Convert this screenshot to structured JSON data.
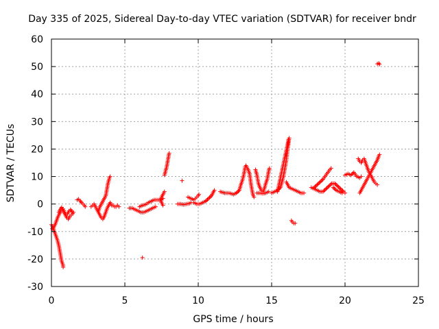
{
  "chart_data": {
    "type": "scatter",
    "title": "Day 335 of 2025, Sidereal Day-to-day VTEC variation (SDTVAR) for receiver bndr",
    "xlabel": "GPS time / hours",
    "ylabel": "SDTVAR / TECUs",
    "xlim": [
      0,
      25
    ],
    "ylim": [
      -30,
      60
    ],
    "xticks": [
      0,
      5,
      10,
      15,
      20,
      25
    ],
    "yticks": [
      -30,
      -20,
      -10,
      0,
      10,
      20,
      30,
      40,
      50,
      60
    ],
    "grid": true,
    "marker": "+",
    "marker_color": "#ff0000",
    "segments": [
      [
        [
          0.0,
          -7.5
        ],
        [
          0.1,
          -8.5
        ],
        [
          0.2,
          -10.0
        ],
        [
          0.3,
          -11.5
        ],
        [
          0.4,
          -13.0
        ],
        [
          0.5,
          -15.0
        ],
        [
          0.55,
          -16.5
        ],
        [
          0.6,
          -18.0
        ],
        [
          0.65,
          -19.5
        ],
        [
          0.7,
          -21.0
        ],
        [
          0.78,
          -22.0
        ],
        [
          0.8,
          -23.0
        ]
      ],
      [
        [
          0.05,
          -9.0
        ],
        [
          0.15,
          -8.5
        ],
        [
          0.25,
          -7.5
        ],
        [
          0.35,
          -6.0
        ],
        [
          0.45,
          -4.5
        ],
        [
          0.55,
          -3.5
        ],
        [
          0.65,
          -2.5
        ],
        [
          0.75,
          -2.0
        ],
        [
          0.85,
          -3.0
        ],
        [
          0.95,
          -4.0
        ],
        [
          1.05,
          -5.0
        ],
        [
          1.15,
          -5.5
        ],
        [
          1.25,
          -4.5
        ],
        [
          1.35,
          -4.0
        ],
        [
          1.45,
          -3.5
        ],
        [
          1.5,
          -3.0
        ]
      ],
      [
        [
          0.5,
          -3.0
        ],
        [
          0.6,
          -2.0
        ],
        [
          0.7,
          -1.2
        ],
        [
          0.8,
          -1.8
        ],
        [
          0.9,
          -3.0
        ],
        [
          1.0,
          -4.0
        ],
        [
          1.1,
          -3.5
        ],
        [
          1.2,
          -2.5
        ],
        [
          1.3,
          -2.0
        ],
        [
          1.4,
          -2.8
        ]
      ],
      [
        [
          1.75,
          1.5
        ],
        [
          1.85,
          1.8
        ],
        [
          1.95,
          1.2
        ],
        [
          2.05,
          0.5
        ],
        [
          2.15,
          0.0
        ],
        [
          2.25,
          -0.5
        ],
        [
          2.3,
          -1.0
        ]
      ],
      [
        [
          2.7,
          -1.0
        ],
        [
          2.8,
          -0.5
        ],
        [
          2.9,
          0.0
        ],
        [
          3.0,
          -1.0
        ],
        [
          3.1,
          -2.0
        ],
        [
          3.2,
          -3.0
        ],
        [
          3.3,
          -4.0
        ],
        [
          3.4,
          -5.0
        ],
        [
          3.5,
          -5.5
        ],
        [
          3.6,
          -4.5
        ],
        [
          3.7,
          -3.0
        ],
        [
          3.8,
          -1.5
        ],
        [
          3.9,
          -0.5
        ],
        [
          4.0,
          0.5
        ],
        [
          4.1,
          -0.5
        ],
        [
          4.2,
          -0.5
        ],
        [
          4.3,
          -1.0
        ],
        [
          4.4,
          -1.0
        ],
        [
          4.5,
          -0.5
        ],
        [
          4.6,
          -1.0
        ]
      ],
      [
        [
          3.2,
          -2.5
        ],
        [
          3.3,
          -1.0
        ],
        [
          3.4,
          0.0
        ],
        [
          3.5,
          1.0
        ],
        [
          3.6,
          2.0
        ],
        [
          3.7,
          3.0
        ],
        [
          3.75,
          4.5
        ],
        [
          3.8,
          6.0
        ],
        [
          3.85,
          7.5
        ],
        [
          3.9,
          8.5
        ],
        [
          3.95,
          9.5
        ],
        [
          4.0,
          10.0
        ]
      ],
      [
        [
          5.3,
          -1.5
        ],
        [
          5.5,
          -1.5
        ],
        [
          5.7,
          -2.0
        ],
        [
          5.9,
          -2.5
        ],
        [
          6.1,
          -3.0
        ],
        [
          6.3,
          -3.0
        ],
        [
          6.5,
          -2.5
        ],
        [
          6.7,
          -2.0
        ],
        [
          6.9,
          -1.5
        ],
        [
          7.1,
          -1.0
        ]
      ],
      [
        [
          6.2,
          -19.5
        ]
      ],
      [
        [
          6.0,
          -1.0
        ],
        [
          6.2,
          -0.5
        ],
        [
          6.4,
          -0.2
        ],
        [
          6.6,
          0.5
        ],
        [
          6.8,
          1.0
        ],
        [
          7.0,
          1.5
        ],
        [
          7.2,
          1.5
        ],
        [
          7.4,
          1.5
        ],
        [
          7.6,
          2.0
        ]
      ],
      [
        [
          7.6,
          -0.5
        ],
        [
          7.5,
          0.5
        ],
        [
          7.45,
          1.5
        ],
        [
          7.5,
          2.5
        ],
        [
          7.55,
          3.0
        ],
        [
          7.6,
          3.5
        ],
        [
          7.65,
          4.0
        ],
        [
          7.7,
          4.5
        ]
      ],
      [
        [
          7.7,
          10.5
        ],
        [
          7.75,
          11.5
        ],
        [
          7.8,
          12.5
        ],
        [
          7.85,
          13.5
        ],
        [
          7.9,
          15.0
        ],
        [
          7.95,
          16.5
        ],
        [
          8.0,
          18.0
        ],
        [
          8.02,
          18.5
        ]
      ],
      [
        [
          8.9,
          8.5
        ]
      ],
      [
        [
          8.6,
          0.0
        ],
        [
          8.8,
          0.0
        ],
        [
          9.0,
          -0.2
        ],
        [
          9.2,
          0.0
        ],
        [
          9.4,
          0.2
        ],
        [
          9.5,
          0.5
        ]
      ],
      [
        [
          9.3,
          2.5
        ],
        [
          9.5,
          2.0
        ],
        [
          9.7,
          1.5
        ],
        [
          9.8,
          2.0
        ],
        [
          9.9,
          2.5
        ],
        [
          10.0,
          3.0
        ],
        [
          10.05,
          3.5
        ]
      ],
      [
        [
          9.7,
          0.5
        ],
        [
          9.9,
          0.0
        ],
        [
          10.1,
          0.0
        ],
        [
          10.3,
          0.5
        ],
        [
          10.5,
          1.0
        ],
        [
          10.7,
          2.0
        ],
        [
          10.9,
          3.0
        ],
        [
          11.0,
          4.0
        ],
        [
          11.1,
          5.0
        ]
      ],
      [
        [
          11.5,
          4.5
        ],
        [
          11.8,
          4.0
        ],
        [
          12.1,
          4.0
        ],
        [
          12.4,
          3.5
        ],
        [
          12.6,
          4.0
        ],
        [
          12.8,
          5.0
        ],
        [
          12.9,
          7.0
        ],
        [
          13.0,
          8.5
        ],
        [
          13.1,
          10.5
        ],
        [
          13.15,
          12.0
        ],
        [
          13.2,
          13.5
        ],
        [
          13.25,
          14.0
        ],
        [
          13.3,
          13.5
        ],
        [
          13.4,
          12.5
        ],
        [
          13.5,
          11.0
        ],
        [
          13.55,
          9.0
        ],
        [
          13.6,
          7.0
        ],
        [
          13.65,
          5.5
        ],
        [
          13.7,
          4.0
        ],
        [
          13.75,
          3.0
        ],
        [
          13.8,
          2.5
        ]
      ],
      [
        [
          13.9,
          12.5
        ],
        [
          13.95,
          11.5
        ],
        [
          14.0,
          10.5
        ],
        [
          14.05,
          9.0
        ],
        [
          14.1,
          7.5
        ],
        [
          14.2,
          6.0
        ],
        [
          14.3,
          5.0
        ],
        [
          14.4,
          4.5
        ],
        [
          14.5,
          5.5
        ],
        [
          14.6,
          7.5
        ],
        [
          14.7,
          9.0
        ],
        [
          14.75,
          10.5
        ],
        [
          14.8,
          12.0
        ],
        [
          14.85,
          13.0
        ]
      ],
      [
        [
          14.0,
          4.0
        ],
        [
          14.2,
          4.0
        ],
        [
          14.4,
          3.8
        ],
        [
          14.6,
          4.0
        ],
        [
          14.8,
          4.5
        ]
      ],
      [
        [
          15.0,
          4.0
        ],
        [
          15.2,
          4.5
        ],
        [
          15.4,
          5.0
        ],
        [
          15.6,
          6.0
        ],
        [
          15.8,
          10.0
        ],
        [
          15.9,
          13.0
        ],
        [
          16.0,
          16.0
        ],
        [
          16.1,
          20.0
        ],
        [
          16.2,
          24.0
        ]
      ],
      [
        [
          15.4,
          4.5
        ],
        [
          15.5,
          7.0
        ],
        [
          15.6,
          9.5
        ],
        [
          15.7,
          12.0
        ],
        [
          15.8,
          14.5
        ],
        [
          15.9,
          17.0
        ],
        [
          16.0,
          19.5
        ],
        [
          16.1,
          22.0
        ],
        [
          16.15,
          23.5
        ]
      ],
      [
        [
          16.0,
          8.0
        ],
        [
          16.1,
          7.0
        ],
        [
          16.2,
          6.0
        ],
        [
          16.4,
          5.5
        ],
        [
          16.6,
          5.0
        ],
        [
          16.8,
          4.5
        ],
        [
          17.0,
          4.0
        ],
        [
          17.2,
          4.0
        ]
      ],
      [
        [
          16.35,
          -6.0
        ],
        [
          16.4,
          -6.5
        ],
        [
          16.5,
          -7.0
        ],
        [
          16.6,
          -7.0
        ]
      ],
      [
        [
          17.7,
          6.0
        ],
        [
          17.9,
          5.5
        ],
        [
          18.1,
          5.0
        ],
        [
          18.3,
          4.5
        ],
        [
          18.5,
          4.5
        ],
        [
          18.7,
          5.5
        ],
        [
          18.9,
          6.5
        ],
        [
          19.1,
          7.5
        ],
        [
          19.3,
          7.5
        ],
        [
          19.5,
          6.5
        ],
        [
          19.7,
          5.5
        ],
        [
          19.9,
          4.5
        ],
        [
          20.0,
          4.0
        ]
      ],
      [
        [
          17.9,
          6.0
        ],
        [
          18.1,
          7.0
        ],
        [
          18.3,
          8.0
        ],
        [
          18.5,
          9.0
        ],
        [
          18.7,
          10.5
        ],
        [
          18.9,
          12.0
        ],
        [
          19.05,
          13.0
        ]
      ],
      [
        [
          19.2,
          6.0
        ],
        [
          19.4,
          5.0
        ],
        [
          19.6,
          4.5
        ],
        [
          19.8,
          4.0
        ]
      ],
      [
        [
          20.0,
          10.5
        ],
        [
          20.2,
          11.0
        ],
        [
          20.4,
          10.5
        ],
        [
          20.6,
          11.5
        ],
        [
          20.8,
          10.0
        ],
        [
          21.0,
          9.5
        ],
        [
          21.1,
          10.0
        ]
      ],
      [
        [
          20.9,
          16.5
        ],
        [
          21.0,
          15.5
        ],
        [
          21.1,
          15.0
        ],
        [
          21.2,
          16.0
        ],
        [
          21.3,
          16.5
        ],
        [
          21.4,
          15.0
        ],
        [
          21.5,
          13.5
        ],
        [
          21.6,
          12.0
        ],
        [
          21.7,
          11.0
        ],
        [
          21.8,
          10.0
        ],
        [
          21.9,
          9.0
        ],
        [
          22.0,
          8.0
        ],
        [
          22.1,
          7.5
        ],
        [
          22.2,
          7.0
        ]
      ],
      [
        [
          21.0,
          4.0
        ],
        [
          21.2,
          6.0
        ],
        [
          21.4,
          8.0
        ],
        [
          21.6,
          10.0
        ],
        [
          21.8,
          12.0
        ],
        [
          22.0,
          14.0
        ],
        [
          22.1,
          15.0
        ],
        [
          22.2,
          16.0
        ],
        [
          22.3,
          17.5
        ],
        [
          22.35,
          18.0
        ]
      ],
      [
        [
          22.2,
          51.0
        ],
        [
          22.3,
          51.2
        ],
        [
          22.35,
          50.8
        ]
      ]
    ]
  }
}
